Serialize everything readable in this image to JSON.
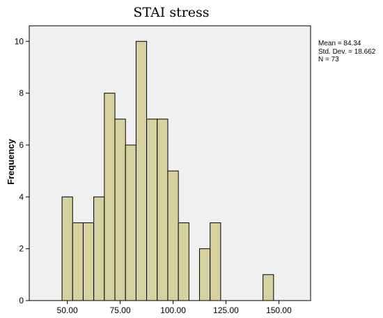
{
  "chart_data": {
    "type": "bar",
    "title": "STAI stress",
    "ylabel": "Frequency",
    "xlabel": "",
    "bin_width": 5,
    "bins": [
      {
        "start": 47.5,
        "end": 52.5,
        "count": 4
      },
      {
        "start": 52.5,
        "end": 57.5,
        "count": 3
      },
      {
        "start": 57.5,
        "end": 62.5,
        "count": 3
      },
      {
        "start": 62.5,
        "end": 67.5,
        "count": 4
      },
      {
        "start": 67.5,
        "end": 72.5,
        "count": 8
      },
      {
        "start": 72.5,
        "end": 77.5,
        "count": 7
      },
      {
        "start": 77.5,
        "end": 82.5,
        "count": 6
      },
      {
        "start": 82.5,
        "end": 87.5,
        "count": 10
      },
      {
        "start": 87.5,
        "end": 92.5,
        "count": 7
      },
      {
        "start": 92.5,
        "end": 97.5,
        "count": 7
      },
      {
        "start": 97.5,
        "end": 102.5,
        "count": 5
      },
      {
        "start": 102.5,
        "end": 107.5,
        "count": 3
      },
      {
        "start": 107.5,
        "end": 112.5,
        "count": 0
      },
      {
        "start": 112.5,
        "end": 117.5,
        "count": 2
      },
      {
        "start": 117.5,
        "end": 122.5,
        "count": 3
      },
      {
        "start": 122.5,
        "end": 127.5,
        "count": 0
      },
      {
        "start": 127.5,
        "end": 132.5,
        "count": 0
      },
      {
        "start": 132.5,
        "end": 137.5,
        "count": 0
      },
      {
        "start": 137.5,
        "end": 142.5,
        "count": 0
      },
      {
        "start": 142.5,
        "end": 147.5,
        "count": 1
      }
    ],
    "xlim": [
      32,
      165
    ],
    "ylim": [
      0,
      10.6
    ],
    "x_ticks": [
      50,
      75,
      100,
      125,
      150
    ],
    "x_tick_labels": [
      "50.00",
      "75.00",
      "100.00",
      "125.00",
      "150.00"
    ],
    "y_ticks": [
      0,
      2,
      4,
      6,
      8,
      10
    ],
    "y_tick_labels": [
      "0",
      "2",
      "4",
      "6",
      "8",
      "10"
    ],
    "grid": false,
    "bar_color": "#d6d19e",
    "bar_edge_color": "#000000",
    "plot_background": "#f0f0f0",
    "stats": {
      "mean": "Mean = 84.34",
      "std": "Std. Dev. = 18.662",
      "n": "N = 73"
    }
  }
}
